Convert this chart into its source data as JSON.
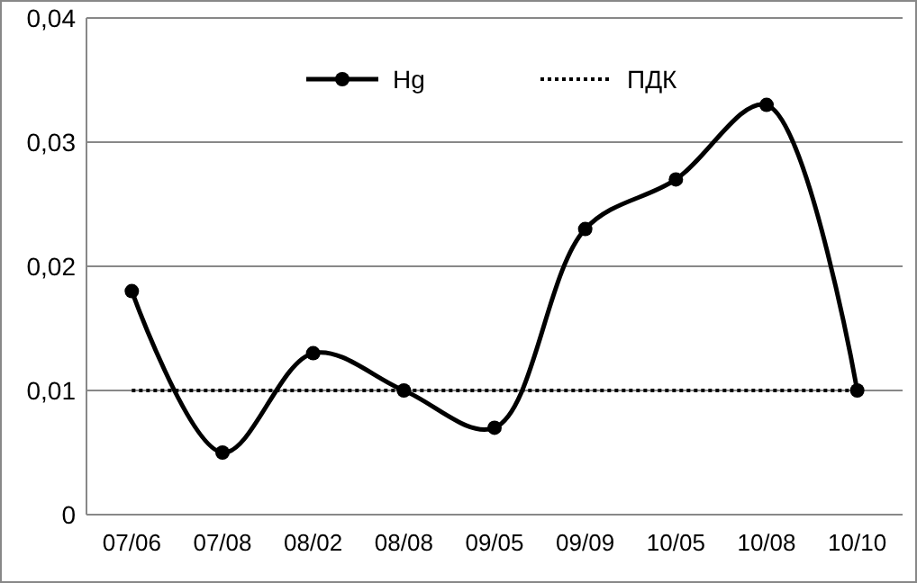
{
  "chart_data": {
    "type": "line",
    "categories": [
      "07/06",
      "07/08",
      "08/02",
      "08/08",
      "09/05",
      "09/09",
      "10/05",
      "10/08",
      "10/10"
    ],
    "series": [
      {
        "name": "Hg",
        "color": "#000000",
        "marker": "circle",
        "line_style": "solid",
        "values": [
          0.018,
          0.005,
          0.013,
          0.01,
          0.007,
          0.023,
          0.027,
          0.033,
          0.01
        ]
      },
      {
        "name": "ПДК",
        "color": "#000000",
        "marker": "none",
        "line_style": "dotted",
        "values": [
          0.01,
          0.01,
          0.01,
          0.01,
          0.01,
          0.01,
          0.01,
          0.01,
          0.01
        ]
      }
    ],
    "ylim": [
      0,
      0.04
    ],
    "yticks": [
      {
        "value": 0,
        "label": "0"
      },
      {
        "value": 0.01,
        "label": "0,01"
      },
      {
        "value": 0.02,
        "label": "0,02"
      },
      {
        "value": 0.03,
        "label": "0,03"
      },
      {
        "value": 0.04,
        "label": "0,04"
      }
    ],
    "grid": "y",
    "legend": "top"
  }
}
